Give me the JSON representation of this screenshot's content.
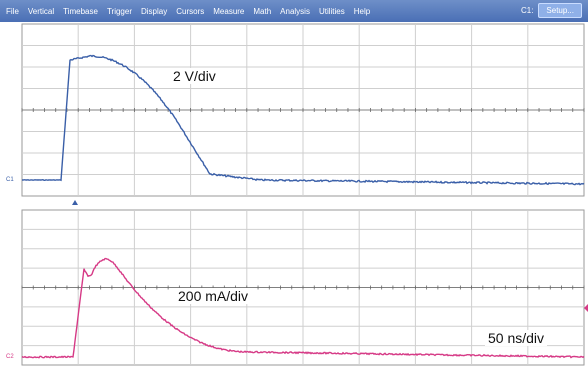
{
  "menubar": {
    "items": [
      {
        "label": "File"
      },
      {
        "label": "Vertical"
      },
      {
        "label": "Timebase"
      },
      {
        "label": "Trigger"
      },
      {
        "label": "Display"
      },
      {
        "label": "Cursors"
      },
      {
        "label": "Measure"
      },
      {
        "label": "Math"
      },
      {
        "label": "Analysis"
      },
      {
        "label": "Utilities"
      },
      {
        "label": "Help"
      }
    ],
    "channel": "C1:",
    "setup_label": "Setup..."
  },
  "top_trace": {
    "scale_label": "2 V/div",
    "channel_marker": "C1",
    "color": "#3a5fa8"
  },
  "bottom_trace": {
    "scale_label": "200 mA/div",
    "channel_marker": "C2",
    "color": "#d63a86"
  },
  "timebase_label": "50 ns/div",
  "colors": {
    "menubar": "#4a6fb5",
    "grid": "#cfcfcf",
    "trigger_marker": "#3a5fa8"
  }
}
